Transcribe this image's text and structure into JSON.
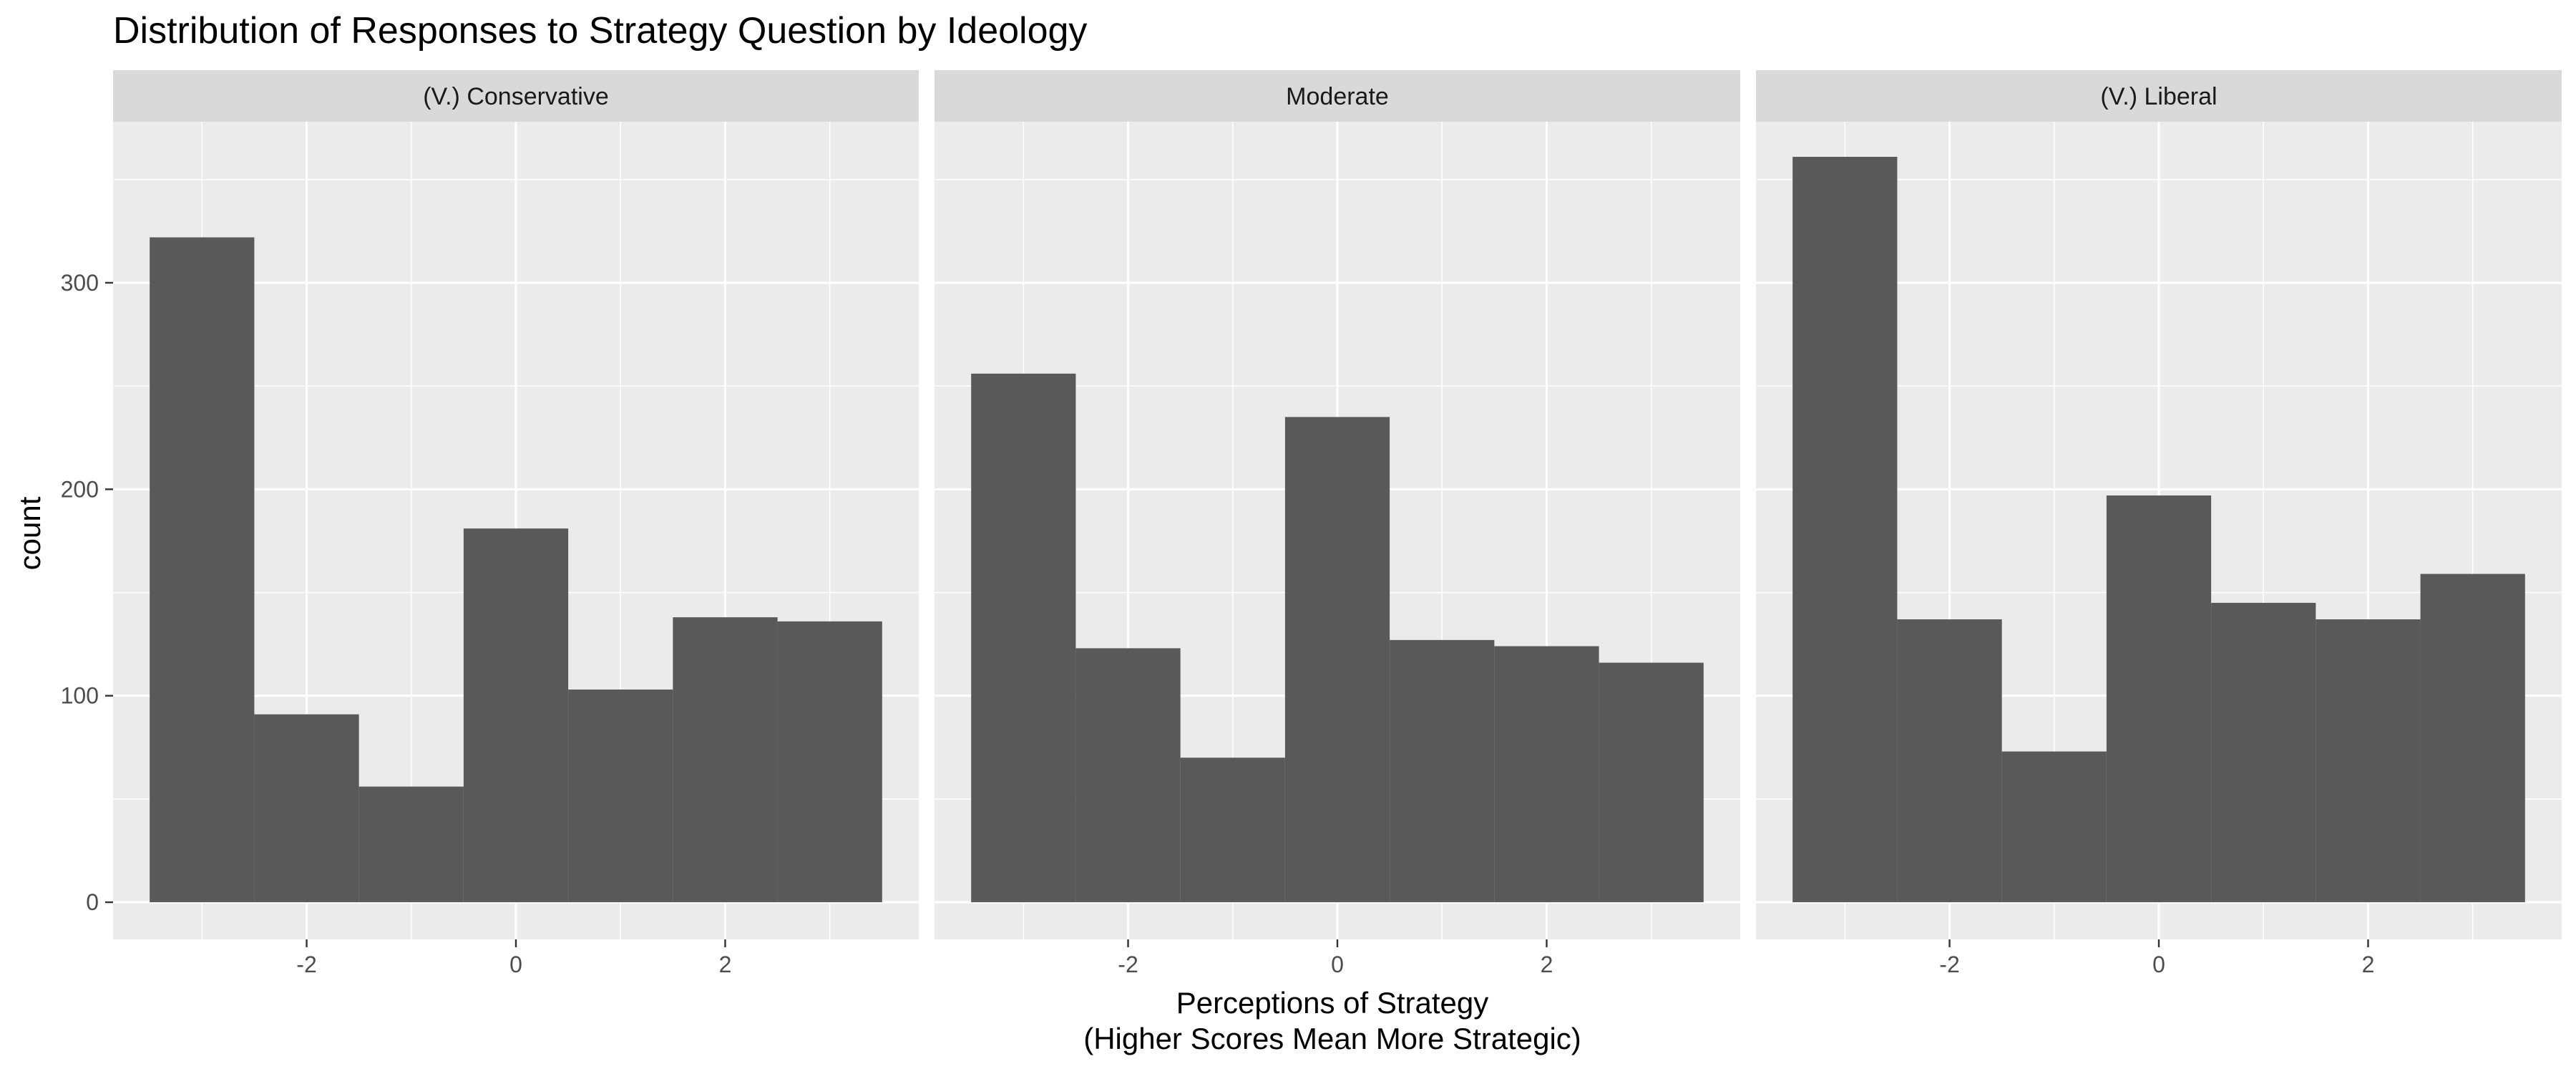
{
  "chart_data": {
    "type": "bar",
    "title": "Distribution of Responses to Strategy Question by Ideology",
    "xlabel_line1": "Perceptions of Strategy",
    "xlabel_line2": "(Higher Scores Mean More Strategic)",
    "ylabel": "count",
    "bins": [
      -3,
      -2,
      -1,
      0,
      1,
      2,
      3
    ],
    "bin_width": 1,
    "xlim": [
      -3.85,
      3.85
    ],
    "ylim": [
      -18,
      378
    ],
    "x_ticks": [
      -2,
      0,
      2
    ],
    "x_tick_labels": [
      "-2",
      "0",
      "2"
    ],
    "y_ticks": [
      0,
      100,
      200,
      300
    ],
    "y_tick_labels": [
      "0",
      "100",
      "200",
      "300"
    ],
    "grid": true,
    "bar_color": "#595959",
    "panel_bg": "#ebebeb",
    "strip_bg": "#d9d9d9",
    "panels": [
      {
        "name": "(V.) Conservative",
        "values": [
          322,
          91,
          56,
          181,
          103,
          138,
          136
        ]
      },
      {
        "name": "Moderate",
        "values": [
          256,
          123,
          70,
          235,
          127,
          124,
          116
        ]
      },
      {
        "name": "(V.) Liberal",
        "values": [
          361,
          137,
          73,
          197,
          145,
          137,
          159
        ]
      }
    ]
  }
}
